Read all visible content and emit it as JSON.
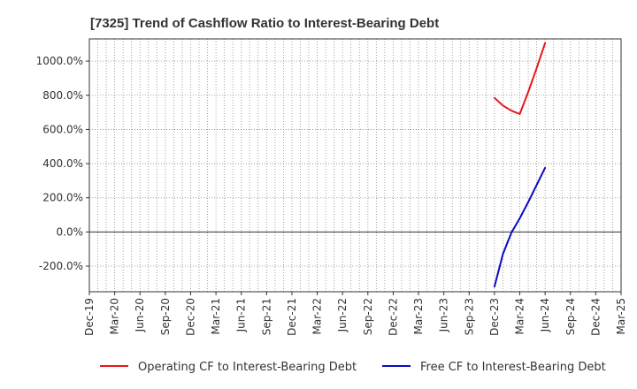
{
  "chart_data": {
    "type": "line",
    "title": "[7325]  Trend of Cashflow Ratio to Interest-Bearing Debt",
    "xlabel": "",
    "ylabel": "",
    "x_ticks": [
      "Dec-19",
      "Mar-20",
      "Jun-20",
      "Sep-20",
      "Dec-20",
      "Mar-21",
      "Jun-21",
      "Sep-21",
      "Dec-21",
      "Mar-22",
      "Jun-22",
      "Sep-22",
      "Dec-22",
      "Mar-23",
      "Jun-23",
      "Sep-23",
      "Dec-23",
      "Mar-24",
      "Jun-24",
      "Sep-24",
      "Dec-24",
      "Mar-25"
    ],
    "y_ticks": [
      "1000.0%",
      "800.0%",
      "600.0%",
      "400.0%",
      "200.0%",
      "0.0%",
      "-200.0%"
    ],
    "y_tick_values": [
      1000,
      800,
      600,
      400,
      200,
      0,
      -200
    ],
    "ylim": [
      -350,
      1130
    ],
    "grid": true,
    "legend_position": "bottom",
    "series": [
      {
        "name": "Operating CF to Interest-Bearing Debt",
        "color": "#e8161b",
        "x": [
          "Dec-23",
          "Jan-24",
          "Feb-24",
          "Mar-24",
          "Apr-24",
          "May-24",
          "Jun-24"
        ],
        "values": [
          785,
          740,
          710,
          690,
          820,
          960,
          1105
        ]
      },
      {
        "name": "Free CF to Interest-Bearing Debt",
        "color": "#0b0bc4",
        "x": [
          "Dec-23",
          "Jan-24",
          "Feb-24",
          "Mar-24",
          "Apr-24",
          "May-24",
          "Jun-24"
        ],
        "values": [
          -320,
          -130,
          -5,
          80,
          175,
          275,
          375
        ]
      }
    ]
  }
}
